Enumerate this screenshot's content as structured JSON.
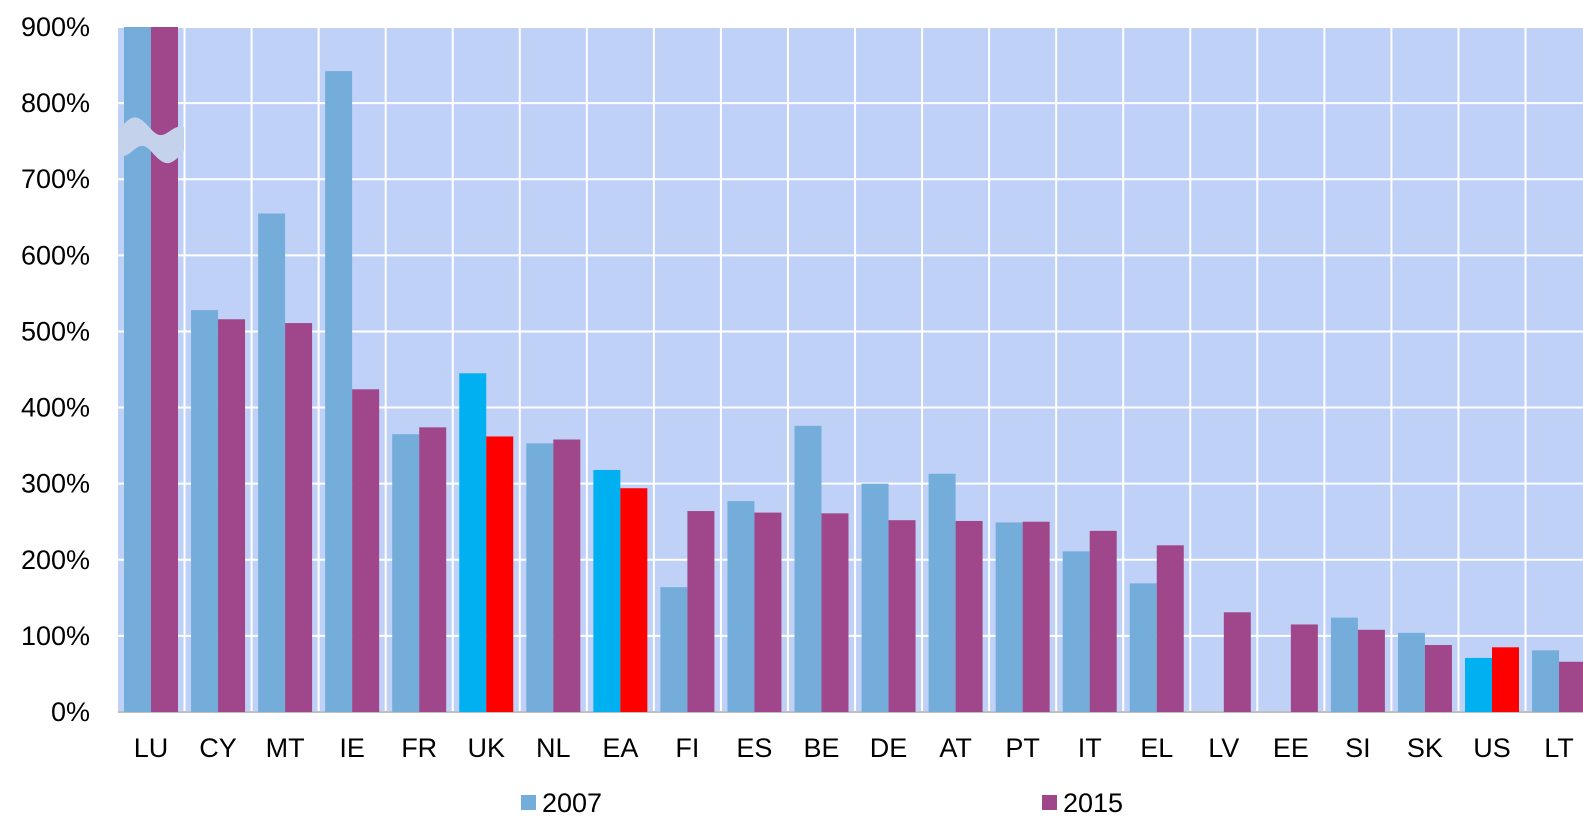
{
  "chart_data": {
    "type": "bar",
    "title": "",
    "xlabel": "",
    "ylabel": "",
    "ylim": [
      0,
      900
    ],
    "y_ticks": [
      0,
      100,
      200,
      300,
      400,
      500,
      600,
      700,
      800,
      900
    ],
    "y_tick_labels": [
      "0%",
      "100%",
      "200%",
      "300%",
      "400%",
      "500%",
      "600%",
      "700%",
      "800%",
      "900%"
    ],
    "y_axis_break": 750,
    "grid": true,
    "legend_position": "bottom",
    "categories": [
      "LU",
      "CY",
      "MT",
      "IE",
      "FR",
      "UK",
      "NL",
      "EA",
      "FI",
      "ES",
      "BE",
      "DE",
      "AT",
      "PT",
      "IT",
      "EL",
      "LV",
      "EE",
      "SI",
      "SK",
      "US",
      "LT"
    ],
    "series": [
      {
        "name": "2007",
        "color": "#74ACDA",
        "highlight_color": "#00B0F0",
        "highlight_categories": [
          "UK",
          "EA",
          "US"
        ],
        "values": [
          900,
          528,
          655,
          842,
          365,
          445,
          353,
          318,
          164,
          277,
          376,
          300,
          313,
          249,
          211,
          169,
          null,
          null,
          124,
          104,
          71,
          81
        ]
      },
      {
        "name": "2015",
        "color": "#A0468A",
        "highlight_color": "#FF0000",
        "highlight_categories": [
          "UK",
          "EA",
          "US"
        ],
        "values": [
          900,
          516,
          511,
          424,
          374,
          362,
          358,
          294,
          264,
          262,
          261,
          252,
          251,
          250,
          238,
          219,
          131,
          115,
          108,
          88,
          85,
          66
        ]
      }
    ],
    "colors": {
      "plot_background": "#C0D1F8",
      "gridline": "#FFFFFF",
      "axis_break_fill": "#C5D2EC",
      "text": "#000000"
    }
  }
}
